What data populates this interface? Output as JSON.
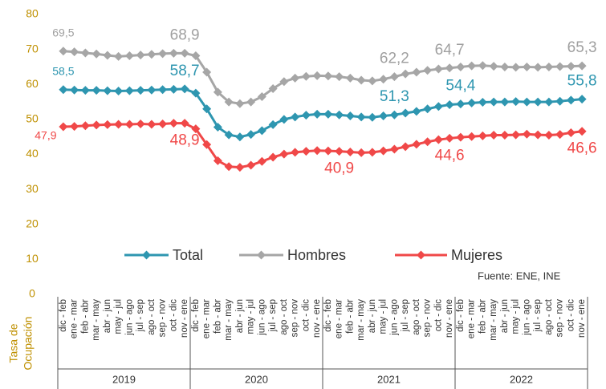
{
  "chart_data": {
    "type": "line",
    "ylabel_lines": [
      "Tasa de",
      "Ocupación"
    ],
    "source": "Fuente: ENE, INE",
    "ylim": [
      0,
      80
    ],
    "yticks": [
      0,
      10,
      20,
      30,
      40,
      50,
      60,
      70,
      80
    ],
    "grid": false,
    "legend": "inside",
    "categories": [
      "dic - feb",
      "ene - mar",
      "feb - abr",
      "mar - may",
      "abr - jun",
      "may - jul",
      "jun - ago",
      "jul - sep",
      "ago - oct",
      "sep - nov",
      "oct - dic",
      "nov - ene",
      "dic - feb",
      "ene - mar",
      "feb - abr",
      "mar - may",
      "abr - jun",
      "may - jul",
      "jun - ago",
      "jul - sep",
      "ago - oct",
      "sep - nov",
      "oct - dic",
      "nov - ene",
      "dic - feb",
      "ene - mar",
      "feb - abr",
      "mar - may",
      "abr - jun",
      "may - jul",
      "jun - ago",
      "jul - sep",
      "ago - oct",
      "sep - nov",
      "oct - dic",
      "nov - ene",
      "dic - feb",
      "ene - mar",
      "feb - abr",
      "mar - may",
      "abr - jun",
      "may - jul",
      "jun - ago",
      "jul - sep",
      "ago - oct",
      "sep - nov",
      "oct - dic",
      "nov - ene"
    ],
    "groups": [
      "2019",
      "2020",
      "2021",
      "2022"
    ],
    "series": [
      {
        "name": "Total",
        "color": "#2e96b0",
        "values": [
          58.5,
          58.4,
          58.3,
          58.3,
          58.2,
          58.1,
          58.2,
          58.3,
          58.4,
          58.5,
          58.6,
          58.7,
          57.5,
          53.0,
          47.8,
          45.6,
          45.0,
          45.7,
          46.8,
          48.5,
          50.0,
          50.7,
          51.2,
          51.5,
          51.5,
          51.3,
          51.0,
          50.7,
          50.6,
          51.0,
          51.3,
          51.8,
          52.3,
          53.0,
          53.7,
          54.2,
          54.4,
          54.7,
          54.9,
          55.0,
          55.0,
          55.1,
          55.0,
          55.0,
          55.0,
          55.2,
          55.5,
          55.8
        ],
        "value_labels": [
          "58,5",
          null,
          null,
          null,
          null,
          null,
          null,
          null,
          null,
          null,
          null,
          "58,7",
          null,
          null,
          null,
          null,
          null,
          null,
          null,
          null,
          null,
          null,
          null,
          null,
          null,
          null,
          null,
          null,
          null,
          null,
          "51,3",
          null,
          null,
          null,
          null,
          null,
          "54,4",
          null,
          null,
          null,
          null,
          null,
          null,
          null,
          null,
          null,
          null,
          "55,8"
        ]
      },
      {
        "name": "Hombres",
        "color": "#a6a6a6",
        "values": [
          69.5,
          69.3,
          69.0,
          68.7,
          68.3,
          68.0,
          68.2,
          68.4,
          68.6,
          68.8,
          68.9,
          68.9,
          68.2,
          63.5,
          57.8,
          55.0,
          54.5,
          55.0,
          56.5,
          58.8,
          60.8,
          61.8,
          62.3,
          62.5,
          62.4,
          62.2,
          61.8,
          61.2,
          61.0,
          61.5,
          62.2,
          63.0,
          63.5,
          64.0,
          64.4,
          64.7,
          65.0,
          65.3,
          65.4,
          65.2,
          65.0,
          64.9,
          65.0,
          64.9,
          65.0,
          65.1,
          65.2,
          65.3
        ],
        "value_labels": [
          "69,5",
          null,
          null,
          null,
          null,
          null,
          null,
          null,
          null,
          null,
          null,
          "68,9",
          null,
          null,
          null,
          null,
          null,
          null,
          null,
          null,
          null,
          null,
          null,
          null,
          null,
          null,
          null,
          null,
          null,
          null,
          "62,2",
          null,
          null,
          null,
          null,
          "64,7",
          null,
          null,
          null,
          null,
          null,
          null,
          null,
          null,
          null,
          null,
          null,
          "65,3"
        ]
      },
      {
        "name": "Mujeres",
        "color": "#f04848",
        "values": [
          47.9,
          48.0,
          48.2,
          48.4,
          48.5,
          48.6,
          48.6,
          48.7,
          48.6,
          48.7,
          48.9,
          48.9,
          47.3,
          42.8,
          38.2,
          36.5,
          36.3,
          36.9,
          38.0,
          39.2,
          40.1,
          40.6,
          40.9,
          41.1,
          41.0,
          40.9,
          40.7,
          40.5,
          40.6,
          41.0,
          41.5,
          42.2,
          42.9,
          43.6,
          44.2,
          44.6,
          44.9,
          45.1,
          45.3,
          45.5,
          45.5,
          45.6,
          45.8,
          45.6,
          45.5,
          45.7,
          46.2,
          46.6
        ],
        "value_labels": [
          "47,9",
          null,
          null,
          null,
          null,
          null,
          null,
          null,
          null,
          null,
          null,
          "48,9",
          null,
          null,
          null,
          null,
          null,
          null,
          null,
          null,
          null,
          null,
          null,
          null,
          null,
          "40,9",
          null,
          null,
          null,
          null,
          null,
          null,
          null,
          null,
          null,
          "44,6",
          null,
          null,
          null,
          null,
          null,
          null,
          null,
          null,
          null,
          null,
          null,
          "46,6"
        ]
      }
    ]
  }
}
